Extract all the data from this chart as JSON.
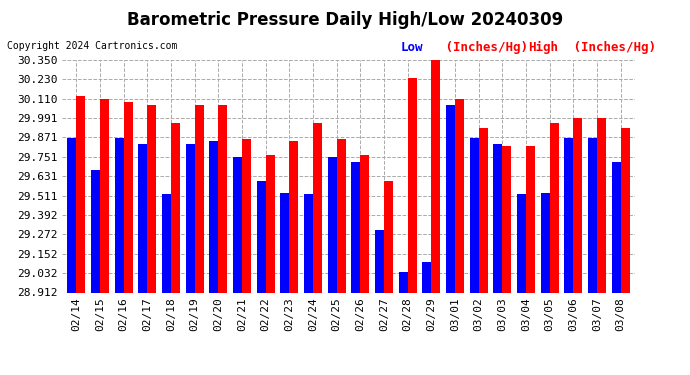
{
  "title": "Barometric Pressure Daily High/Low 20240309",
  "copyright": "Copyright 2024 Cartronics.com",
  "legend_low_text": "Low",
  "legend_unit1": " (Inches/Hg)",
  "legend_high_text": "High",
  "legend_unit2": " (Inches/Hg)",
  "dates": [
    "02/14",
    "02/15",
    "02/16",
    "02/17",
    "02/18",
    "02/19",
    "02/20",
    "02/21",
    "02/22",
    "02/23",
    "02/24",
    "02/25",
    "02/26",
    "02/27",
    "02/28",
    "02/29",
    "03/01",
    "03/02",
    "03/03",
    "03/04",
    "03/05",
    "03/06",
    "03/07",
    "03/08"
  ],
  "high_values": [
    30.13,
    30.11,
    30.09,
    30.07,
    29.96,
    30.07,
    30.07,
    29.86,
    29.76,
    29.85,
    29.96,
    29.86,
    29.76,
    29.6,
    30.24,
    30.38,
    30.11,
    29.93,
    29.82,
    29.82,
    29.96,
    29.99,
    29.99,
    29.93
  ],
  "low_values": [
    29.87,
    29.67,
    29.87,
    29.83,
    29.52,
    29.83,
    29.85,
    29.75,
    29.6,
    29.53,
    29.52,
    29.75,
    29.72,
    29.3,
    29.04,
    29.1,
    30.07,
    29.87,
    29.83,
    29.52,
    29.53,
    29.87,
    29.87,
    29.72
  ],
  "ymin": 28.912,
  "ymax": 30.35,
  "yticks": [
    28.912,
    29.032,
    29.152,
    29.272,
    29.392,
    29.511,
    29.631,
    29.751,
    29.871,
    29.991,
    30.11,
    30.23,
    30.35
  ],
  "ytick_labels": [
    "28.912",
    "29.032",
    "29.152",
    "29.272",
    "29.392",
    "29.511",
    "29.631",
    "29.751",
    "29.871",
    "29.991",
    "30.110",
    "30.230",
    "30.350"
  ],
  "bar_width": 0.38,
  "low_color": "#0000ff",
  "high_color": "#ff0000",
  "background_color": "#ffffff",
  "grid_color": "#aaaaaa",
  "title_fontsize": 12,
  "tick_fontsize": 8,
  "copyright_fontsize": 7,
  "legend_fontsize": 9
}
